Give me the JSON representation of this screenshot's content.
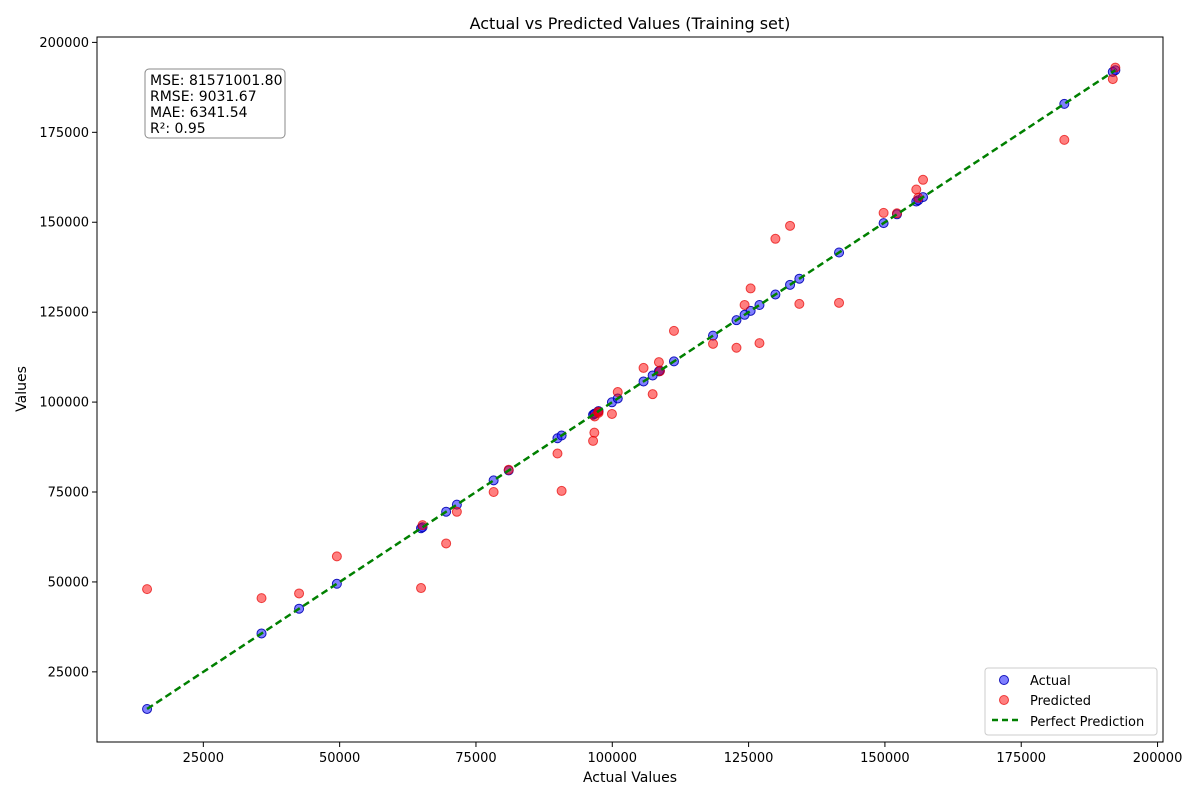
{
  "chart_data": {
    "type": "scatter",
    "title": "Actual vs Predicted Values (Training set)",
    "xlabel": "Actual Values",
    "ylabel": "Values",
    "xlim": [
      5500,
      201000
    ],
    "ylim": [
      5500,
      201500
    ],
    "xticks": [
      25000,
      50000,
      75000,
      100000,
      125000,
      150000,
      175000,
      200000
    ],
    "yticks": [
      25000,
      50000,
      75000,
      100000,
      125000,
      150000,
      175000,
      200000
    ],
    "grid": false,
    "legend_position": "bottom-right",
    "stats": [
      "MSE: 81571001.80",
      "RMSE: 9031.67",
      "MAE: 6341.54",
      "R²: 0.95"
    ],
    "series": [
      {
        "name": "Actual",
        "color": "#0000ff",
        "points": [
          [
            14681,
            14681
          ],
          [
            35673,
            35673
          ],
          [
            42559,
            42559
          ],
          [
            49491,
            49491
          ],
          [
            64926,
            64926
          ],
          [
            65200,
            65200
          ],
          [
            69529,
            69529
          ],
          [
            71498,
            71498
          ],
          [
            78240,
            78240
          ],
          [
            81005,
            81005
          ],
          [
            89949,
            89949
          ],
          [
            90708,
            90708
          ],
          [
            96479,
            96479
          ],
          [
            96712,
            96712
          ],
          [
            96779,
            96779
          ],
          [
            97428,
            97428
          ],
          [
            97483,
            97483
          ],
          [
            99938,
            99938
          ],
          [
            101004,
            101004
          ],
          [
            105734,
            105734
          ],
          [
            107404,
            107404
          ],
          [
            108552,
            108552
          ],
          [
            108734,
            108734
          ],
          [
            111313,
            111313
          ],
          [
            118474,
            118474
          ],
          [
            122776,
            122776
          ],
          [
            124267,
            124267
          ],
          [
            125370,
            125370
          ],
          [
            126993,
            126993
          ],
          [
            129917,
            129917
          ],
          [
            132602,
            132602
          ],
          [
            134307,
            134307
          ],
          [
            141586,
            141586
          ],
          [
            149760,
            149760
          ],
          [
            152212,
            152212
          ],
          [
            155753,
            155753
          ],
          [
            156123,
            156123
          ],
          [
            156992,
            156992
          ],
          [
            182902,
            182902
          ],
          [
            191792,
            191792
          ],
          [
            192262,
            192262
          ]
        ]
      },
      {
        "name": "Predicted",
        "color": "#ff0000",
        "points": [
          [
            14681,
            48000
          ],
          [
            35673,
            45500
          ],
          [
            42559,
            46800
          ],
          [
            49491,
            57100
          ],
          [
            64926,
            48300
          ],
          [
            65200,
            65800
          ],
          [
            69529,
            60700
          ],
          [
            71498,
            69500
          ],
          [
            78240,
            75000
          ],
          [
            81005,
            81200
          ],
          [
            89949,
            85700
          ],
          [
            90708,
            75300
          ],
          [
            96479,
            89200
          ],
          [
            96712,
            91500
          ],
          [
            96779,
            96000
          ],
          [
            97428,
            97300
          ],
          [
            97483,
            97000
          ],
          [
            99938,
            96700
          ],
          [
            101004,
            102800
          ],
          [
            105734,
            109500
          ],
          [
            107404,
            102200
          ],
          [
            108552,
            111100
          ],
          [
            108734,
            108600
          ],
          [
            111313,
            119800
          ],
          [
            118474,
            116200
          ],
          [
            122776,
            115100
          ],
          [
            124267,
            127000
          ],
          [
            125370,
            131600
          ],
          [
            126993,
            116400
          ],
          [
            129917,
            145400
          ],
          [
            132602,
            149000
          ],
          [
            134307,
            127300
          ],
          [
            141586,
            127600
          ],
          [
            149760,
            152600
          ],
          [
            152212,
            152500
          ],
          [
            155753,
            159100
          ],
          [
            156123,
            156800
          ],
          [
            156992,
            161800
          ],
          [
            182902,
            172900
          ],
          [
            191792,
            189800
          ],
          [
            192262,
            193000
          ]
        ]
      },
      {
        "name": "Perfect Prediction",
        "color": "#008000",
        "line": [
          [
            14681,
            14681
          ],
          [
            192262,
            192262
          ]
        ]
      }
    ]
  }
}
